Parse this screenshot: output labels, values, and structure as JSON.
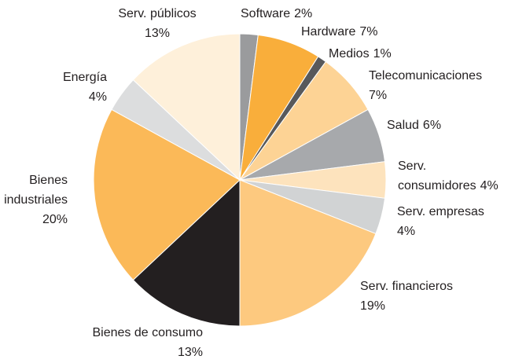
{
  "chart_data": {
    "type": "pie",
    "categories": [
      "Software",
      "Hardware",
      "Medios",
      "Telecomunicaciones",
      "Salud",
      "Serv.\nconsumidores",
      "Serv. empresas",
      "Serv. financieros",
      "Bienes de consumo",
      "Bienes\nindustriales",
      "Energía",
      "Serv. públicos"
    ],
    "values": [
      2,
      7,
      1,
      7,
      6,
      4,
      4,
      19,
      13,
      20,
      4,
      13
    ],
    "value_labels": [
      "2%",
      "7%",
      "1%",
      "7%",
      "6%",
      "4%",
      "4%",
      "19%",
      "13%",
      "20%",
      "4%",
      "13%"
    ],
    "colors": [
      "#9a9b9d",
      "#f9ae3b",
      "#58595b",
      "#fdd395",
      "#a7a9ac",
      "#fde3bd",
      "#d1d3d4",
      "#fdc97f",
      "#231f20",
      "#fbb958",
      "#dcddde",
      "#fef0da"
    ]
  }
}
